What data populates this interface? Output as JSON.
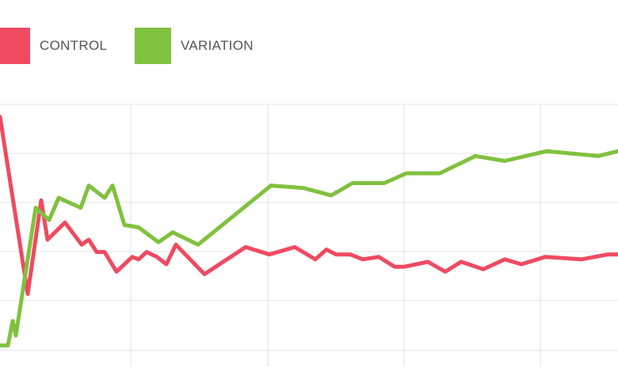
{
  "chart_data": {
    "type": "line",
    "title": "",
    "xlabel": "",
    "ylabel": "",
    "xlim": [
      0,
      780
    ],
    "ylim": [
      0,
      100
    ],
    "grid": true,
    "legend_placement": "top-left",
    "series": [
      {
        "name": "CONTROL",
        "color": "#EF4A60",
        "x": [
          0,
          35,
          52,
          60,
          82,
          103,
          112,
          122,
          132,
          147,
          167,
          175,
          185,
          198,
          210,
          222,
          258,
          310,
          340,
          372,
          398,
          412,
          424,
          442,
          458,
          478,
          498,
          510,
          540,
          562,
          582,
          610,
          637,
          658,
          688,
          734,
          767,
          780
        ],
        "values": [
          95,
          23,
          61,
          45,
          52,
          43,
          45,
          40,
          40,
          32,
          38,
          37,
          40,
          38,
          35,
          43,
          31,
          42,
          39,
          42,
          37,
          41,
          39,
          39,
          37,
          38,
          34,
          34,
          36,
          32,
          36,
          33,
          37,
          35,
          38,
          37,
          39,
          39
        ]
      },
      {
        "name": "VARIATION",
        "color": "#80C13E",
        "x": [
          0,
          10,
          16,
          20,
          45,
          62,
          74,
          102,
          112,
          132,
          142,
          157,
          175,
          200,
          218,
          250,
          342,
          383,
          418,
          445,
          485,
          513,
          555,
          600,
          637,
          690,
          755,
          780
        ],
        "values": [
          2,
          2,
          12,
          6,
          58,
          53,
          62,
          58,
          67,
          62,
          67,
          51,
          50,
          44,
          48,
          43,
          67,
          66,
          63,
          68,
          68,
          72,
          72,
          79,
          77,
          81,
          79,
          81
        ]
      }
    ]
  }
}
